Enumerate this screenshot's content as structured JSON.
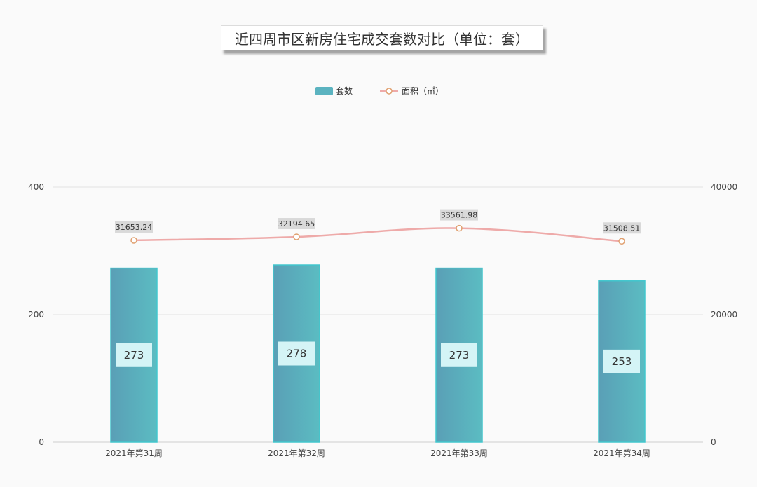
{
  "chart_data": {
    "type": "bar",
    "title": "近四周市区新房住宅成交套数对比（单位：套）",
    "categories": [
      "2021年第31周",
      "2021年第32周",
      "2021年第33周",
      "2021年第34周"
    ],
    "series": [
      {
        "name": "套数",
        "type": "bar",
        "axis": "left",
        "values": [
          273,
          278,
          273,
          253
        ]
      },
      {
        "name": "面积（㎡）",
        "type": "line",
        "axis": "right",
        "values": [
          31653.24,
          32194.65,
          33561.98,
          31508.51
        ]
      }
    ],
    "y_left": {
      "ticks": [
        0,
        200,
        400
      ],
      "ylim": [
        0,
        400
      ]
    },
    "y_right": {
      "ticks": [
        0,
        20000,
        40000
      ],
      "ylim": [
        0,
        40000
      ]
    },
    "grid": true,
    "legend": "top-center",
    "colors": {
      "bar_start": "#5a9fb6",
      "bar_end": "#5bbcc2",
      "bar_border": "#41c6cd",
      "line": "#eeaaa9",
      "marker_stroke": "#e0a070",
      "bar_label_bg": "#d4f4f6",
      "line_label_bg": "#d9d9d9"
    }
  }
}
